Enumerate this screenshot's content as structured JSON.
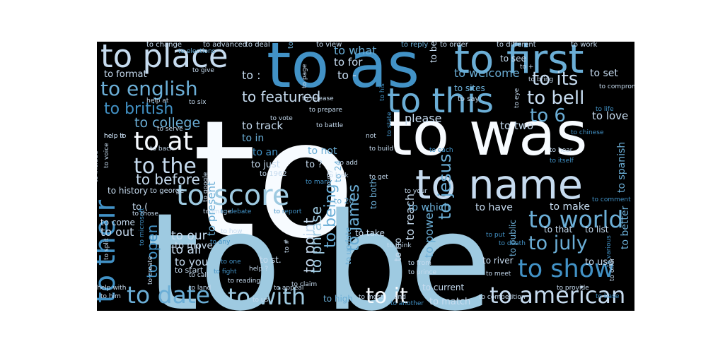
{
  "palette": {
    "background": "#000000",
    "colors": [
      "#f7fbff",
      "#c6dbef",
      "#9ecae1",
      "#6baed6",
      "#4292c6",
      "#2171b5"
    ]
  },
  "words": [
    {
      "text": "to",
      "color": 0
    },
    {
      "text": "to be",
      "color": 2
    },
    {
      "text": "to as",
      "color": 4
    },
    {
      "text": "to first",
      "color": 3
    },
    {
      "text": "to place",
      "color": 1
    },
    {
      "text": "to was",
      "color": 0
    },
    {
      "text": "to name",
      "color": 1
    },
    {
      "text": "to this",
      "color": 3
    },
    {
      "text": "to their",
      "color": 4
    },
    {
      "text": "to score",
      "color": 2
    },
    {
      "text": "to at",
      "color": 0
    },
    {
      "text": "to the",
      "color": 1
    },
    {
      "text": "to world",
      "color": 3
    },
    {
      "text": "to show",
      "color": 4
    },
    {
      "text": "to date",
      "color": 3
    },
    {
      "text": "to with",
      "color": 2
    },
    {
      "text": "to american",
      "color": 1
    },
    {
      "text": "to english",
      "color": 3
    },
    {
      "text": "to british",
      "color": 4
    },
    {
      "text": "to college",
      "color": 3
    },
    {
      "text": "to featured",
      "color": 1
    },
    {
      "text": "to before",
      "color": 1
    },
    {
      "text": "to it",
      "color": 0
    },
    {
      "text": "to its",
      "color": 1
    },
    {
      "text": "to bell",
      "color": 1
    },
    {
      "text": "to 6",
      "color": 3
    },
    {
      "text": "to july",
      "color": 3
    },
    {
      "text": "to jesus",
      "color": 3
    },
    {
      "text": "to being",
      "color": 3
    },
    {
      "text": "to james",
      "color": 3
    },
    {
      "text": "to point",
      "color": 1
    },
    {
      "text": "to phrase",
      "color": 2
    },
    {
      "text": "to open",
      "color": 4
    },
    {
      "text": "to all",
      "color": 1
    },
    {
      "text": "to our",
      "color": 1
    },
    {
      "text": "to you",
      "color": 1
    },
    {
      "text": "to out",
      "color": 1
    },
    {
      "text": "to reach",
      "color": 1
    },
    {
      "text": "please",
      "color": 1
    },
    {
      "text": "to two",
      "color": 1
    },
    {
      "text": "to love",
      "color": 1
    },
    {
      "text": "to track",
      "color": 1
    },
    {
      "text": "to in",
      "color": 3
    },
    {
      "text": "to an",
      "color": 4
    },
    {
      "text": "to not",
      "color": 3
    },
    {
      "text": "to just",
      "color": 1
    },
    {
      "text": "to ?",
      "color": 1
    },
    {
      "text": "to what",
      "color": 3
    },
    {
      "text": "to for",
      "color": 1
    },
    {
      "text": "to -",
      "color": 1
    },
    {
      "text": "to :",
      "color": 1
    },
    {
      "text": "to welcome",
      "color": 3
    },
    {
      "text": "to set",
      "color": 1
    },
    {
      "text": "to format",
      "color": 1
    },
    {
      "text": "to present",
      "color": 3
    },
    {
      "text": "to history",
      "color": 1
    },
    {
      "text": "to which",
      "color": 3
    },
    {
      "text": "to have",
      "color": 1
    },
    {
      "text": "to make",
      "color": 1
    },
    {
      "text": "to spanish",
      "color": 3
    },
    {
      "text": "to better",
      "color": 3
    },
    {
      "text": "to use",
      "color": 1
    },
    {
      "text": "to river",
      "color": 1
    },
    {
      "text": "to public",
      "color": 3
    },
    {
      "text": "to that",
      "color": 1
    },
    {
      "text": "to list",
      "color": 1
    },
    {
      "text": "to power",
      "color": 3
    },
    {
      "text": "to move",
      "color": 1
    },
    {
      "text": "to start",
      "color": 1
    },
    {
      "text": "to high",
      "color": 3
    },
    {
      "text": "to match",
      "color": 1
    },
    {
      "text": "to current",
      "color": 1
    },
    {
      "text": "to come",
      "color": 1
    },
    {
      "text": "to (",
      "color": 1
    },
    {
      "text": "to 24",
      "color": 3
    },
    {
      "text": "to 20",
      "color": 3
    },
    {
      "text": "to both",
      "color": 3
    },
    {
      "text": "to take",
      "color": 1
    },
    {
      "text": "to st.",
      "color": 1
    },
    {
      "text": "to update",
      "color": 3
    },
    {
      "text": "to no",
      "color": 1
    },
    {
      "text": "to 1962",
      "color": 1
    },
    {
      "text": "to george",
      "color": 1
    },
    {
      "text": "to change",
      "color": 1
    },
    {
      "text": "to advanced",
      "color": 1
    },
    {
      "text": "to deal",
      "color": 1
    },
    {
      "text": "to hold",
      "color": 3
    },
    {
      "text": "to view",
      "color": 1
    },
    {
      "text": "to reply",
      "color": 3
    },
    {
      "text": "to order",
      "color": 1
    },
    {
      "text": "to different",
      "color": 1
    },
    {
      "text": "to work",
      "color": 1
    },
    {
      "text": "to see",
      "color": 1
    },
    {
      "text": "to become",
      "color": 1
    },
    {
      "text": "to sites",
      "color": 3
    },
    {
      "text": "to say",
      "color": 1
    },
    {
      "text": "to bring",
      "color": 1
    },
    {
      "text": "to elections",
      "color": 3
    },
    {
      "text": "to give",
      "color": 1
    },
    {
      "text": "to six",
      "color": 1
    },
    {
      "text": "to page",
      "color": 1
    },
    {
      "text": "to release",
      "color": 1
    },
    {
      "text": "to prepare",
      "color": 1
    },
    {
      "text": "to vote",
      "color": 1
    },
    {
      "text": "to his",
      "color": 4
    },
    {
      "text": "to battle",
      "color": 1
    },
    {
      "text": "to state",
      "color": 4
    },
    {
      "text": "to build",
      "color": 1
    },
    {
      "text": "to add",
      "color": 1
    },
    {
      "text": "to look",
      "color": 1
    },
    {
      "text": "to get",
      "color": 1
    },
    {
      "text": "to your",
      "color": 1
    },
    {
      "text": "to my",
      "color": 1
    },
    {
      "text": "to many",
      "color": 4
    },
    {
      "text": "to google",
      "color": 1
    },
    {
      "text": "to report",
      "color": 4
    },
    {
      "text": "to image",
      "color": 1
    },
    {
      "text": "to debate",
      "color": 4
    },
    {
      "text": "to those",
      "color": 1
    },
    {
      "text": "to any",
      "color": 4
    },
    {
      "text": "to how",
      "color": 1
    },
    {
      "text": "to one",
      "color": 4
    },
    {
      "text": "to land",
      "color": 1
    },
    {
      "text": "to call",
      "color": 1
    },
    {
      "text": "to create",
      "color": 1
    },
    {
      "text": "to from",
      "color": 1
    },
    {
      "text": "to prince",
      "color": 1
    },
    {
      "text": "to meet",
      "color": 1
    },
    {
      "text": "to put",
      "color": 4
    },
    {
      "text": "to death",
      "color": 4
    },
    {
      "text": "to most",
      "color": 1
    },
    {
      "text": "to another",
      "color": 4
    },
    {
      "text": "to competition",
      "color": 1
    },
    {
      "text": "to provide",
      "color": 1
    },
    {
      "text": "to offer",
      "color": 1
    },
    {
      "text": "to various",
      "color": 4
    },
    {
      "text": "to base",
      "color": 4
    },
    {
      "text": "to him",
      "color": 1
    },
    {
      "text": "to us",
      "color": 1
    },
    {
      "text": "to voice",
      "color": 1
    },
    {
      "text": "to include",
      "color": 1
    },
    {
      "text": "to split",
      "color": 1
    },
    {
      "text": "to microsoft",
      "color": 4
    },
    {
      "text": "to serve",
      "color": 1
    },
    {
      "text": "to back",
      "color": 1
    },
    {
      "text": "to think",
      "color": 1
    },
    {
      "text": "to hear",
      "color": 1
    },
    {
      "text": "to chinese",
      "color": 4
    },
    {
      "text": "to comment",
      "color": 4
    },
    {
      "text": "to claim",
      "color": 1
    },
    {
      "text": "to fight",
      "color": 4
    },
    {
      "text": "to reading",
      "color": 1
    },
    {
      "text": "to #",
      "color": 1
    },
    {
      "text": "to compromise",
      "color": 1
    },
    {
      "text": "to eye",
      "color": 1
    },
    {
      "text": "to itself",
      "color": 4
    },
    {
      "text": "to life",
      "color": 4
    },
    {
      "text": "help at",
      "color": 1
    },
    {
      "text": "help it",
      "color": 1
    },
    {
      "text": "help to",
      "color": 1
    },
    {
      "text": "help ?",
      "color": 1
    },
    {
      "text": "help with",
      "color": 1
    },
    {
      "text": "and",
      "color": 1
    },
    {
      "text": "not",
      "color": 1
    },
    {
      "text": "to appeal",
      "color": 1
    },
    {
      "text": "to each",
      "color": 4
    },
    {
      "text": "to +",
      "color": 1
    },
    {
      "text": "to improve",
      "color": 1
    },
    {
      "text": "to some",
      "color": 1
    }
  ]
}
